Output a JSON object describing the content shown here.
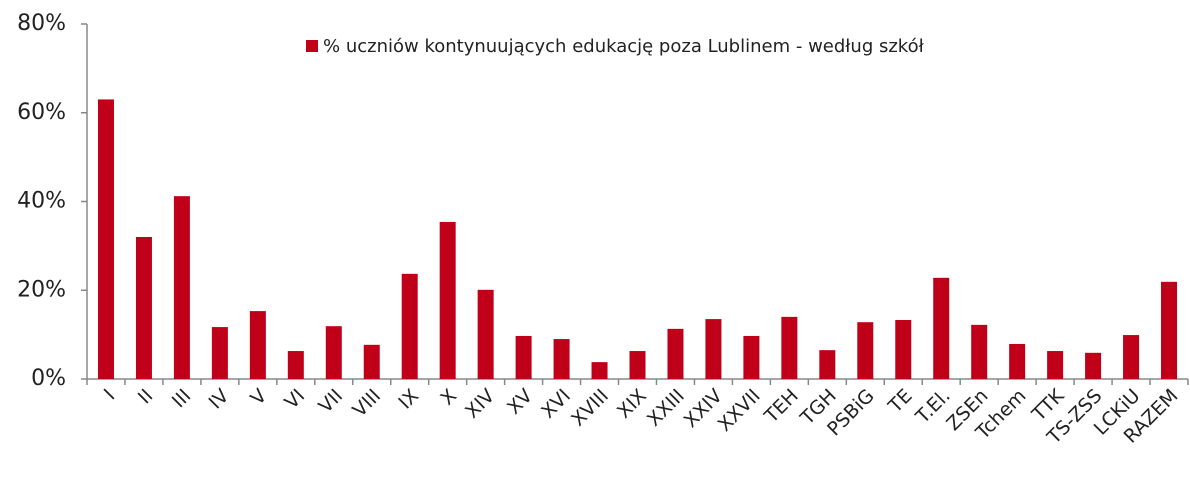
{
  "chart_data": {
    "type": "bar",
    "categories": [
      "I",
      "II",
      "III",
      "IV",
      "V",
      "VI",
      "VII",
      "VIII",
      "IX",
      "X",
      "XIV",
      "XV",
      "XVI",
      "XVIII",
      "XIX",
      "XXIII",
      "XXIV",
      "XXVII",
      "TEH",
      "TGH",
      "PSBiG",
      "TE",
      "T.El.",
      "ZSEn",
      "Tchem",
      "TTK",
      "TS-ZSS",
      "LCKiU",
      "RAZEM"
    ],
    "series": [
      {
        "name": "% uczniów kontynuujących edukację poza Lublinem - według szkół",
        "color": "#c00018",
        "values": [
          63,
          32,
          41.2,
          11.7,
          15.3,
          6.3,
          11.9,
          7.7,
          23.7,
          35.4,
          20.1,
          9.7,
          9.0,
          3.8,
          6.3,
          11.3,
          13.5,
          9.7,
          14.0,
          6.5,
          12.8,
          13.3,
          22.8,
          12.2,
          7.9,
          6.3,
          5.9,
          9.9,
          21.9
        ]
      }
    ],
    "ylim": [
      0,
      80
    ],
    "yticks": [
      {
        "value": 0,
        "label": "0%"
      },
      {
        "value": 20,
        "label": "20%"
      },
      {
        "value": 40,
        "label": "40%"
      },
      {
        "value": 60,
        "label": "60%"
      },
      {
        "value": 80,
        "label": "80%"
      }
    ],
    "legend": "top"
  }
}
